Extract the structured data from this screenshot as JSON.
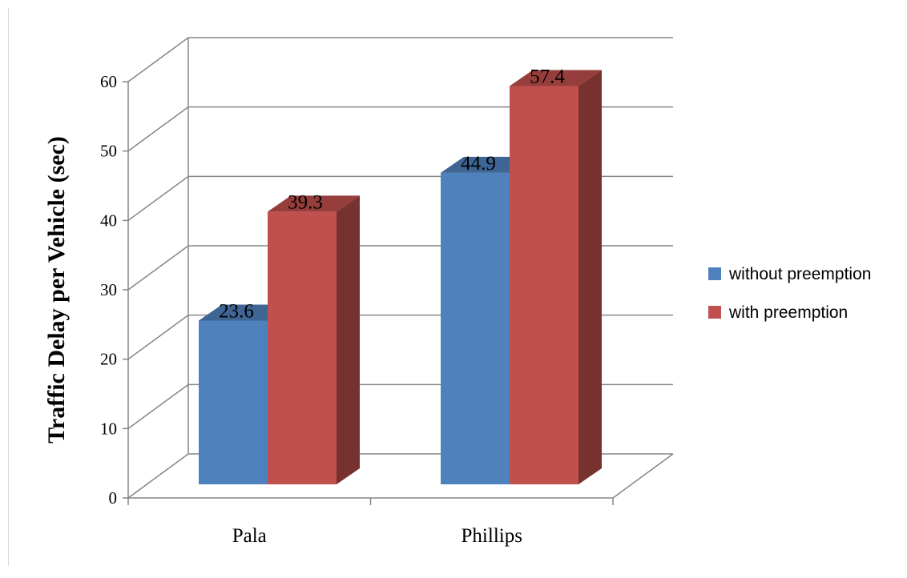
{
  "chart_data": {
    "type": "bar",
    "title": "",
    "xlabel": "",
    "ylabel": "Traffic Delay per Vehicle (sec)",
    "categories": [
      "Pala",
      "Phillips"
    ],
    "series": [
      {
        "name": "without preemption",
        "values": [
          23.6,
          44.9
        ],
        "color": "#4f81bd"
      },
      {
        "name": "with preemption",
        "values": [
          39.3,
          57.4
        ],
        "color": "#c0504d"
      }
    ],
    "ylim": [
      0,
      60
    ],
    "yticks": [
      0,
      10,
      20,
      30,
      40,
      50,
      60
    ],
    "grid": true,
    "three_d": true,
    "data_labels": [
      "23.6",
      "44.9",
      "39.3",
      "57.4"
    ],
    "legend_position": "right"
  }
}
